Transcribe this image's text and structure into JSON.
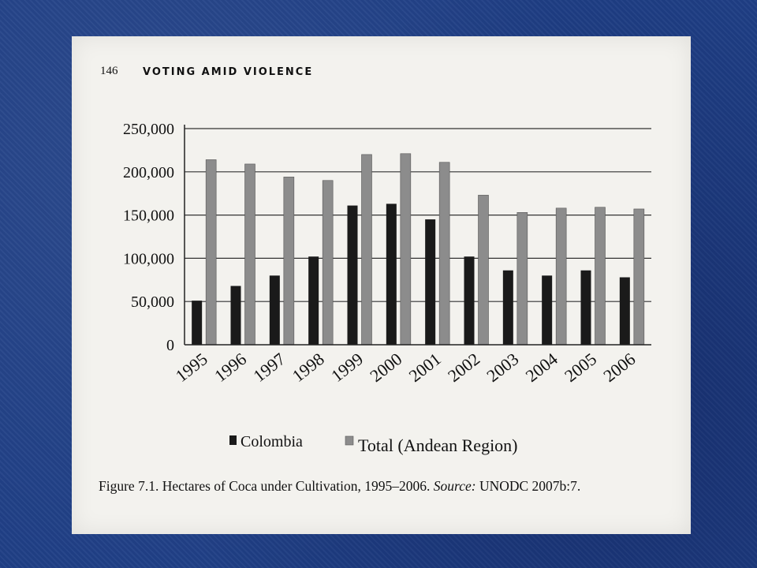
{
  "page": {
    "page_number": "146",
    "running_head": "VOTING AMID VIOLENCE",
    "caption_figure": "Figure 7.1. Hectares of Coca under Cultivation, 1995–2006.",
    "caption_source_label": "Source:",
    "caption_source": "UNODC 2007b:7."
  },
  "colors": {
    "slide_background": "#1f3f86",
    "page": "#f3f2ee",
    "colombia_bar": "#1a1a1a",
    "total_bar": "#8c8c8c"
  },
  "chart_data": {
    "type": "bar",
    "title": "",
    "xlabel": "",
    "ylabel": "",
    "categories": [
      "1995",
      "1996",
      "1997",
      "1998",
      "1999",
      "2000",
      "2001",
      "2002",
      "2003",
      "2004",
      "2005",
      "2006"
    ],
    "series": [
      {
        "name": "Colombia",
        "values": [
          51000,
          68000,
          80000,
          102000,
          161000,
          163000,
          145000,
          102000,
          86000,
          80000,
          86000,
          78000
        ]
      },
      {
        "name": "Total (Andean Region)",
        "values": [
          214000,
          209000,
          194000,
          190000,
          220000,
          221000,
          211000,
          173000,
          153000,
          158000,
          159000,
          157000
        ]
      }
    ],
    "ylim": [
      0,
      250000
    ],
    "yticks": [
      0,
      50000,
      100000,
      150000,
      200000,
      250000
    ],
    "ytick_labels": [
      "0",
      "50,000",
      "100,000",
      "150,000",
      "200,000",
      "250,000"
    ],
    "grid": true,
    "legend_position": "bottom"
  }
}
